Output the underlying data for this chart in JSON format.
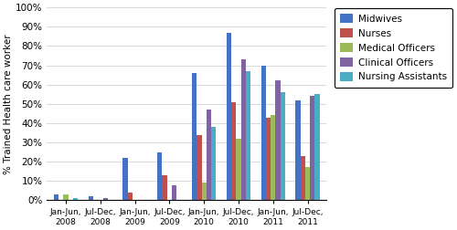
{
  "categories_line1": [
    "Jan-Jun,",
    "Jul-Dec,",
    "Jan-Jun,",
    "Jul-Dec,",
    "Jan-Jun,",
    "Jul-Dec,",
    "Jan-Jun,",
    "Jul-Dec,"
  ],
  "categories_line2": [
    "2008",
    "2008",
    "2009",
    "2009",
    "2010",
    "2010",
    "2011",
    "2011"
  ],
  "series": {
    "Midwives": [
      0.03,
      0.02,
      0.22,
      0.25,
      0.66,
      0.87,
      0.7,
      0.52
    ],
    "Nurses": [
      0.0,
      0.0,
      0.04,
      0.13,
      0.34,
      0.51,
      0.43,
      0.23
    ],
    "Medical Officers": [
      0.03,
      0.0,
      0.0,
      0.0,
      0.09,
      0.32,
      0.44,
      0.17
    ],
    "Clinical Officers": [
      0.0,
      0.01,
      0.0,
      0.08,
      0.47,
      0.73,
      0.62,
      0.54
    ],
    "Nursing Assistants": [
      0.01,
      0.0,
      0.0,
      0.0,
      0.38,
      0.67,
      0.56,
      0.55
    ]
  },
  "colors": {
    "Midwives": "#4472C4",
    "Nurses": "#C0504D",
    "Medical Officers": "#9BBB59",
    "Clinical Officers": "#8064A2",
    "Nursing Assistants": "#4BACC6"
  },
  "ylabel": "% Trained Health care worker",
  "ylim": [
    0,
    1.0
  ],
  "yticks": [
    0,
    0.1,
    0.2,
    0.3,
    0.4,
    0.5,
    0.6,
    0.7,
    0.8,
    0.9,
    1.0
  ],
  "ytick_labels": [
    "0%",
    "10%",
    "20%",
    "30%",
    "40%",
    "50%",
    "60%",
    "70%",
    "80%",
    "90%",
    "100%"
  ],
  "bar_width": 0.14,
  "figsize": [
    5.0,
    2.52
  ],
  "dpi": 100
}
